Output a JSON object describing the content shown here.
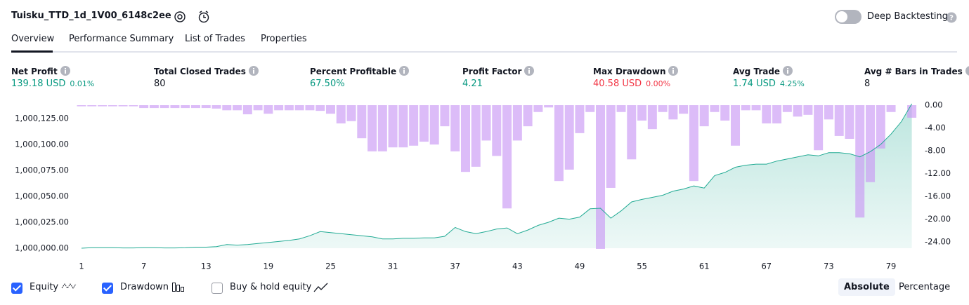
{
  "header": {
    "title": "Tuisku_TTD_1d_1V00_6148c2ee",
    "deep_backtesting_label": "Deep Backtesting",
    "deep_backtesting_on": false
  },
  "tabs": {
    "items": [
      "Overview",
      "Performance Summary",
      "List of Trades",
      "Properties"
    ],
    "active": 0
  },
  "metrics": [
    {
      "label": "Net Profit",
      "value": "139.18 USD",
      "change": "0.01%",
      "color": "#089981"
    },
    {
      "label": "Total Closed Trades",
      "value": "80",
      "color": "#131722"
    },
    {
      "label": "Percent Profitable",
      "value": "67.50%",
      "color": "#089981"
    },
    {
      "label": "Profit Factor",
      "value": "4.21",
      "color": "#089981"
    },
    {
      "label": "Max Drawdown",
      "value": "40.58 USD",
      "change": "0.00%",
      "color": "#f23645"
    },
    {
      "label": "Avg Trade",
      "value": "1.74 USD",
      "change": "4.25%",
      "color": "#089981"
    },
    {
      "label": "Avg # Bars in Trades",
      "value": "8",
      "color": "#131722"
    }
  ],
  "chart_data": {
    "type": "combo",
    "x": [
      1,
      2,
      3,
      4,
      5,
      6,
      7,
      8,
      9,
      10,
      11,
      12,
      13,
      14,
      15,
      16,
      17,
      18,
      19,
      20,
      21,
      22,
      23,
      24,
      25,
      26,
      27,
      28,
      29,
      30,
      31,
      32,
      33,
      34,
      35,
      36,
      37,
      38,
      39,
      40,
      41,
      42,
      43,
      44,
      45,
      46,
      47,
      48,
      49,
      50,
      51,
      52,
      53,
      54,
      55,
      56,
      57,
      58,
      59,
      60,
      61,
      62,
      63,
      64,
      65,
      66,
      67,
      68,
      69,
      70,
      71,
      72,
      73,
      74,
      75,
      76,
      77,
      78,
      79,
      80,
      81
    ],
    "xlim": [
      1,
      81
    ],
    "xticks": [
      1,
      7,
      13,
      19,
      25,
      31,
      37,
      43,
      49,
      55,
      61,
      67,
      73,
      79
    ],
    "ylim": [
      1000000,
      1000138.5
    ],
    "yticks": [
      {
        "value": 1000000,
        "label": "1,000,000.00"
      },
      {
        "value": 1000025,
        "label": "1,000,025.00"
      },
      {
        "value": 1000050,
        "label": "1,000,050.00"
      },
      {
        "value": 1000075,
        "label": "1,000,075.00"
      },
      {
        "value": 1000100,
        "label": "1,000,100.00"
      },
      {
        "value": 1000125,
        "label": "1,000,125.00"
      }
    ],
    "y2lim": [
      -25.2,
      0
    ],
    "y2ticks": [
      {
        "value": 0,
        "label": "0.00"
      },
      {
        "value": -4,
        "label": "-4.00"
      },
      {
        "value": -8,
        "label": "-8.00"
      },
      {
        "value": -12,
        "label": "-12.00"
      },
      {
        "value": -16,
        "label": "-16.00"
      },
      {
        "value": -20,
        "label": "-20.00"
      },
      {
        "value": -24,
        "label": "-24.00"
      }
    ],
    "series": [
      {
        "name": "Equity",
        "type": "area",
        "color": "#22ab94",
        "visible": true,
        "values": [
          1000000,
          1000000.5,
          1000000.5,
          1000000.5,
          1000000.3,
          1000000.3,
          1000000.5,
          1000000.5,
          1000000.3,
          1000000.3,
          1000000.5,
          1000001,
          1000001,
          1000001.5,
          1000003.5,
          1000003,
          1000003.5,
          1000004.5,
          1000005.5,
          1000006.5,
          1000007.5,
          1000009,
          1000012,
          1000016,
          1000015,
          1000014,
          1000013,
          1000012,
          1000011,
          1000009,
          1000009,
          1000009.5,
          1000009.5,
          1000010,
          1000010,
          1000011.5,
          1000020,
          1000016,
          1000014,
          1000016,
          1000018.5,
          1000019.5,
          1000014,
          1000017.5,
          1000022,
          1000025,
          1000029,
          1000028,
          1000030,
          1000038,
          1000038.5,
          1000029,
          1000036,
          1000044.6,
          1000047,
          1000049,
          1000051,
          1000055,
          1000057,
          1000060,
          1000058,
          1000070,
          1000073,
          1000078,
          1000080,
          1000081,
          1000081,
          1000084,
          1000086,
          1000088,
          1000090,
          1000089,
          1000092,
          1000092,
          1000091,
          1000088,
          1000093,
          1000100,
          1000110,
          1000122,
          1000139.18
        ]
      },
      {
        "name": "Drawdown",
        "type": "bar",
        "axis": "y2",
        "color": "#c998f5",
        "visible": true,
        "values": [
          -0.2,
          -0.2,
          -0.2,
          -0.2,
          -0.2,
          -0.2,
          -0.5,
          -0.5,
          -0.5,
          -0.5,
          -0.5,
          -0.5,
          -0.5,
          -0.6,
          -0.9,
          -0.9,
          -1.6,
          -0.9,
          -1.5,
          -0.9,
          -0.9,
          -0.9,
          -0.9,
          -1,
          -1.5,
          -3.2,
          -2.8,
          -5.8,
          -8.1,
          -8.1,
          -7.4,
          -7.4,
          -7.1,
          -6.4,
          -6.9,
          -3.7,
          -8.1,
          -11.7,
          -10.8,
          -6.2,
          -8.9,
          -18.1,
          -6.2,
          -3.7,
          -1.2,
          -0.4,
          -13.3,
          -11.3,
          -4.9,
          -1.2,
          -25.2,
          -14.5,
          -1.2,
          -9.5,
          -2.7,
          -4.2,
          -1.2,
          -2.5,
          -1.5,
          -13.3,
          -3.7,
          -1.2,
          -2.7,
          -7.1,
          -0.9,
          -0.9,
          -3.2,
          -3.2,
          -1.2,
          -2,
          -1.7,
          -7.9,
          -2.5,
          -5.4,
          -5.9,
          -19.7,
          -13.5,
          -7.6,
          -1.2,
          0,
          -2.2
        ]
      }
    ],
    "buy_hold_label": "Buy & hold equity",
    "buy_hold_visible": false
  },
  "view_modes": {
    "items": [
      "Absolute",
      "Percentage"
    ],
    "active": 0
  }
}
